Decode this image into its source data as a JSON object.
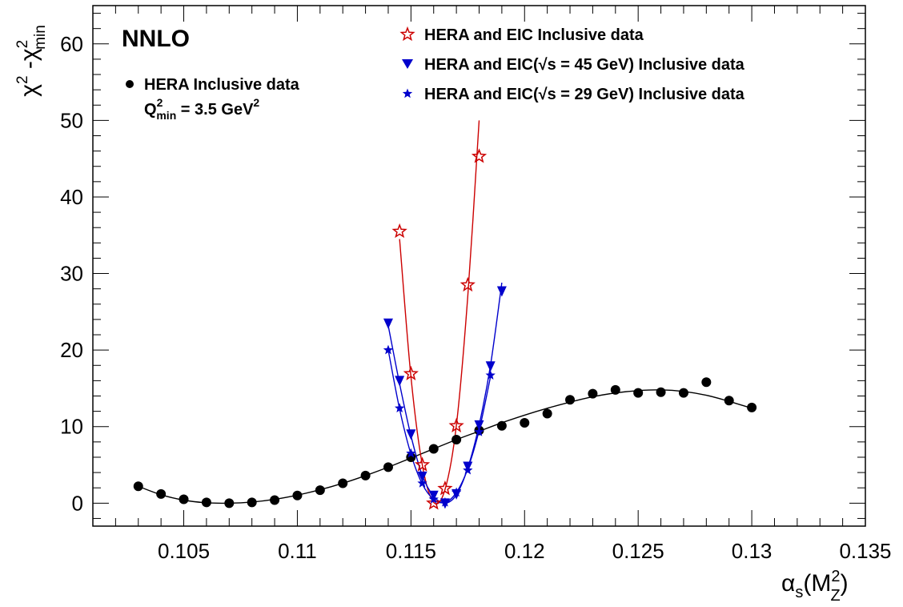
{
  "chart_data": {
    "type": "scatter",
    "title": "NNLO",
    "xlabel": "αs(M²Z)",
    "ylabel": "χ² -χ²min",
    "xlim": [
      0.101,
      0.135
    ],
    "ylim": [
      -3,
      65
    ],
    "x_ticks": [
      "0.105",
      "0.11",
      "0.115",
      "0.12",
      "0.125",
      "0.13",
      "0.135"
    ],
    "y_ticks": [
      "0",
      "10",
      "20",
      "30",
      "40",
      "50",
      "60"
    ],
    "annotation": "Q²min = 3.5 GeV²",
    "series": [
      {
        "name": "HERA Inclusive data",
        "marker": "circle",
        "color": "#000000",
        "x": [
          0.103,
          0.104,
          0.105,
          0.106,
          0.107,
          0.108,
          0.109,
          0.11,
          0.111,
          0.112,
          0.113,
          0.114,
          0.115,
          0.116,
          0.117,
          0.118,
          0.119,
          0.12,
          0.121,
          0.122,
          0.123,
          0.124,
          0.125,
          0.126,
          0.127,
          0.128,
          0.129,
          0.13
        ],
        "y": [
          2.2,
          1.2,
          0.5,
          0.1,
          0.0,
          0.1,
          0.4,
          1.0,
          1.7,
          2.6,
          3.6,
          4.7,
          6.0,
          7.1,
          8.3,
          9.5,
          10.1,
          10.5,
          11.7,
          13.5,
          14.3,
          14.8,
          14.4,
          14.5,
          14.4,
          15.8,
          13.4,
          12.5
        ],
        "fit_x": [
          0.103,
          0.104,
          0.105,
          0.106,
          0.107,
          0.108,
          0.109,
          0.11,
          0.111,
          0.112,
          0.113,
          0.114,
          0.115,
          0.116,
          0.117,
          0.118,
          0.119,
          0.12,
          0.121,
          0.122,
          0.123,
          0.124,
          0.125,
          0.126,
          0.127,
          0.128,
          0.129,
          0.13
        ],
        "fit_y": [
          2.2,
          1.1,
          0.4,
          0.05,
          0.0,
          0.15,
          0.5,
          1.05,
          1.75,
          2.6,
          3.6,
          4.7,
          5.9,
          7.1,
          8.3,
          9.4,
          10.5,
          11.5,
          12.4,
          13.2,
          13.9,
          14.4,
          14.7,
          14.8,
          14.6,
          14.1,
          13.3,
          12.4
        ]
      },
      {
        "name": "HERA and EIC Inclusive data",
        "marker": "open-star",
        "color": "#cc0000",
        "x": [
          0.1145,
          0.115,
          0.1155,
          0.116,
          0.1165,
          0.117,
          0.1175,
          0.118
        ],
        "y": [
          35.5,
          16.9,
          5.0,
          0.0,
          1.9,
          10.1,
          28.5,
          45.3
        ],
        "fit_x": [
          0.1145,
          0.115,
          0.1155,
          0.116,
          0.1165,
          0.117,
          0.1175,
          0.118
        ],
        "fit_y": [
          34.5,
          16.5,
          5.0,
          0.1,
          1.8,
          10.2,
          27.0,
          50.0
        ]
      },
      {
        "name": "HERA and EIC(√s = 45 GeV) Inclusive data",
        "marker": "triangle-down",
        "color": "#0000cc",
        "x": [
          0.114,
          0.1145,
          0.115,
          0.1155,
          0.116,
          0.1165,
          0.117,
          0.1175,
          0.118,
          0.1185,
          0.119
        ],
        "y": [
          23.5,
          16.0,
          9.0,
          3.5,
          1.0,
          0.0,
          1.2,
          4.8,
          10.2,
          17.9,
          27.7
        ],
        "fit_x": [
          0.114,
          0.1145,
          0.115,
          0.1155,
          0.116,
          0.1165,
          0.117,
          0.1175,
          0.118,
          0.1185,
          0.119
        ],
        "fit_y": [
          23.2,
          15.6,
          8.8,
          3.6,
          0.9,
          0.0,
          1.1,
          4.6,
          10.2,
          18.0,
          28.8
        ]
      },
      {
        "name": "HERA and EIC(√s = 29 GeV) Inclusive data",
        "marker": "filled-star",
        "color": "#0000cc",
        "x": [
          0.114,
          0.1145,
          0.115,
          0.1155,
          0.116,
          0.1165,
          0.117,
          0.1175,
          0.118,
          0.1185
        ],
        "y": [
          20.0,
          12.4,
          6.5,
          2.6,
          0.5,
          0.1,
          1.4,
          4.3,
          9.3,
          16.7
        ],
        "fit_x": [
          0.114,
          0.1145,
          0.115,
          0.1155,
          0.116,
          0.1165,
          0.117,
          0.1175,
          0.118,
          0.1185
        ],
        "fit_y": [
          20.0,
          12.3,
          6.4,
          2.5,
          0.5,
          0.1,
          1.4,
          4.5,
          9.5,
          16.5
        ]
      }
    ]
  }
}
